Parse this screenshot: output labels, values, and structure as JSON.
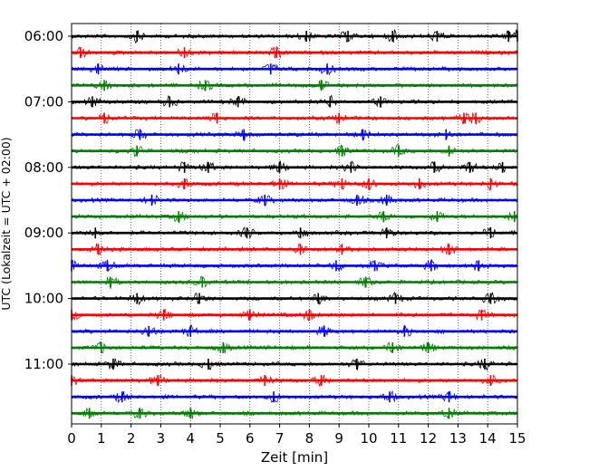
{
  "chart_data": {
    "type": "line",
    "chart_kind": "helicorder",
    "xlabel": "Zeit  [min]",
    "ylabel": "UTC (Lokalzeit = UTC + 02:00)",
    "x_ticks": [
      0,
      1,
      2,
      3,
      4,
      5,
      6,
      7,
      8,
      9,
      10,
      11,
      12,
      13,
      14,
      15
    ],
    "xlim": [
      0,
      15
    ],
    "x_grid": "dotted vertical lines at every minute",
    "y_tick_labels": [
      "06:00",
      "07:00",
      "08:00",
      "09:00",
      "10:00",
      "11:00"
    ],
    "trace_interval_minutes": 15,
    "trace_colors": [
      "#000000",
      "#ff0000",
      "#0000ff",
      "#008000"
    ],
    "trace_count": 24,
    "events_minutes": [
      [
        2.2,
        7.9,
        9.3,
        10.8,
        12.3,
        14.7,
        15.0
      ],
      [
        0.3,
        3.8,
        6.9
      ],
      [
        0.9,
        3.6,
        6.7,
        8.6
      ],
      [
        1.1,
        4.5,
        8.4
      ],
      [
        0.7,
        3.3,
        5.6,
        8.7,
        10.4
      ],
      [
        1.1,
        4.9,
        9.0,
        13.2,
        13.6
      ],
      [
        2.3,
        5.8,
        9.8,
        12.6
      ],
      [
        2.2,
        9.1,
        11.0,
        12.7
      ],
      [
        3.8,
        4.6,
        7.0,
        9.4,
        12.2,
        13.4,
        14.5
      ],
      [
        3.8,
        7.0,
        9.1,
        10.0,
        11.7,
        14.1
      ],
      [
        2.7,
        6.5,
        9.6,
        10.6
      ],
      [
        3.6,
        10.5,
        12.3,
        14.9
      ],
      [
        0.8,
        5.9,
        7.7,
        10.6,
        14.1
      ],
      [
        0.9,
        7.7,
        9.1,
        12.7
      ],
      [
        0.0,
        1.2,
        8.9,
        10.2,
        12.1,
        13.7
      ],
      [
        1.3,
        4.4,
        9.9
      ],
      [
        2.2,
        4.3,
        8.3,
        10.9,
        14.1
      ],
      [
        0.0,
        3.1,
        6.0,
        8.0,
        13.8
      ],
      [
        2.6,
        4.0,
        8.5,
        11.2
      ],
      [
        1.0,
        5.1,
        10.8,
        12.0
      ],
      [
        1.4,
        4.6,
        9.6,
        13.9
      ],
      [
        0.0,
        2.9,
        6.5,
        8.4,
        14.1
      ],
      [
        1.7,
        6.8,
        10.7,
        12.7
      ],
      [
        0.6,
        2.3,
        4.0,
        12.7
      ]
    ]
  }
}
